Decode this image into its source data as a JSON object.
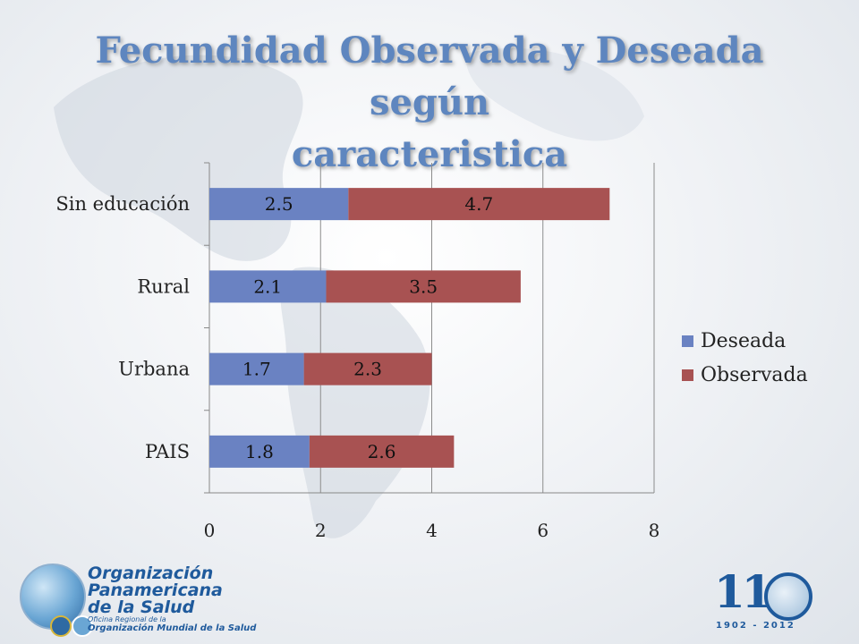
{
  "title_line1": "Fecundidad Observada y Deseada según",
  "title_line2": "caracteristica",
  "colors": {
    "deseada": "#6a82c2",
    "observada": "#a85252",
    "title": "#5e86bf"
  },
  "chart_data": {
    "type": "bar",
    "orientation": "horizontal",
    "stacked": true,
    "categories": [
      "Sin educación",
      "Rural",
      "Urbana",
      "PAIS"
    ],
    "series": [
      {
        "name": "Deseada",
        "values": [
          2.5,
          2.1,
          1.7,
          1.8
        ]
      },
      {
        "name": "Observada",
        "values": [
          4.7,
          3.5,
          2.3,
          2.6
        ]
      }
    ],
    "xlim": [
      0,
      8
    ],
    "xticks": [
      "0",
      "2",
      "4",
      "6",
      "8"
    ],
    "grid": true,
    "legend_position": "right"
  },
  "logos": {
    "org_line1": "Organización",
    "org_line2": "Panamericana",
    "org_line3": "de la Salud",
    "org_sub1": "Oficina Regional de la",
    "org_sub2": "Organización Mundial de la Salud",
    "anniv_number": "110",
    "anniv_years": "1902 - 2012"
  }
}
